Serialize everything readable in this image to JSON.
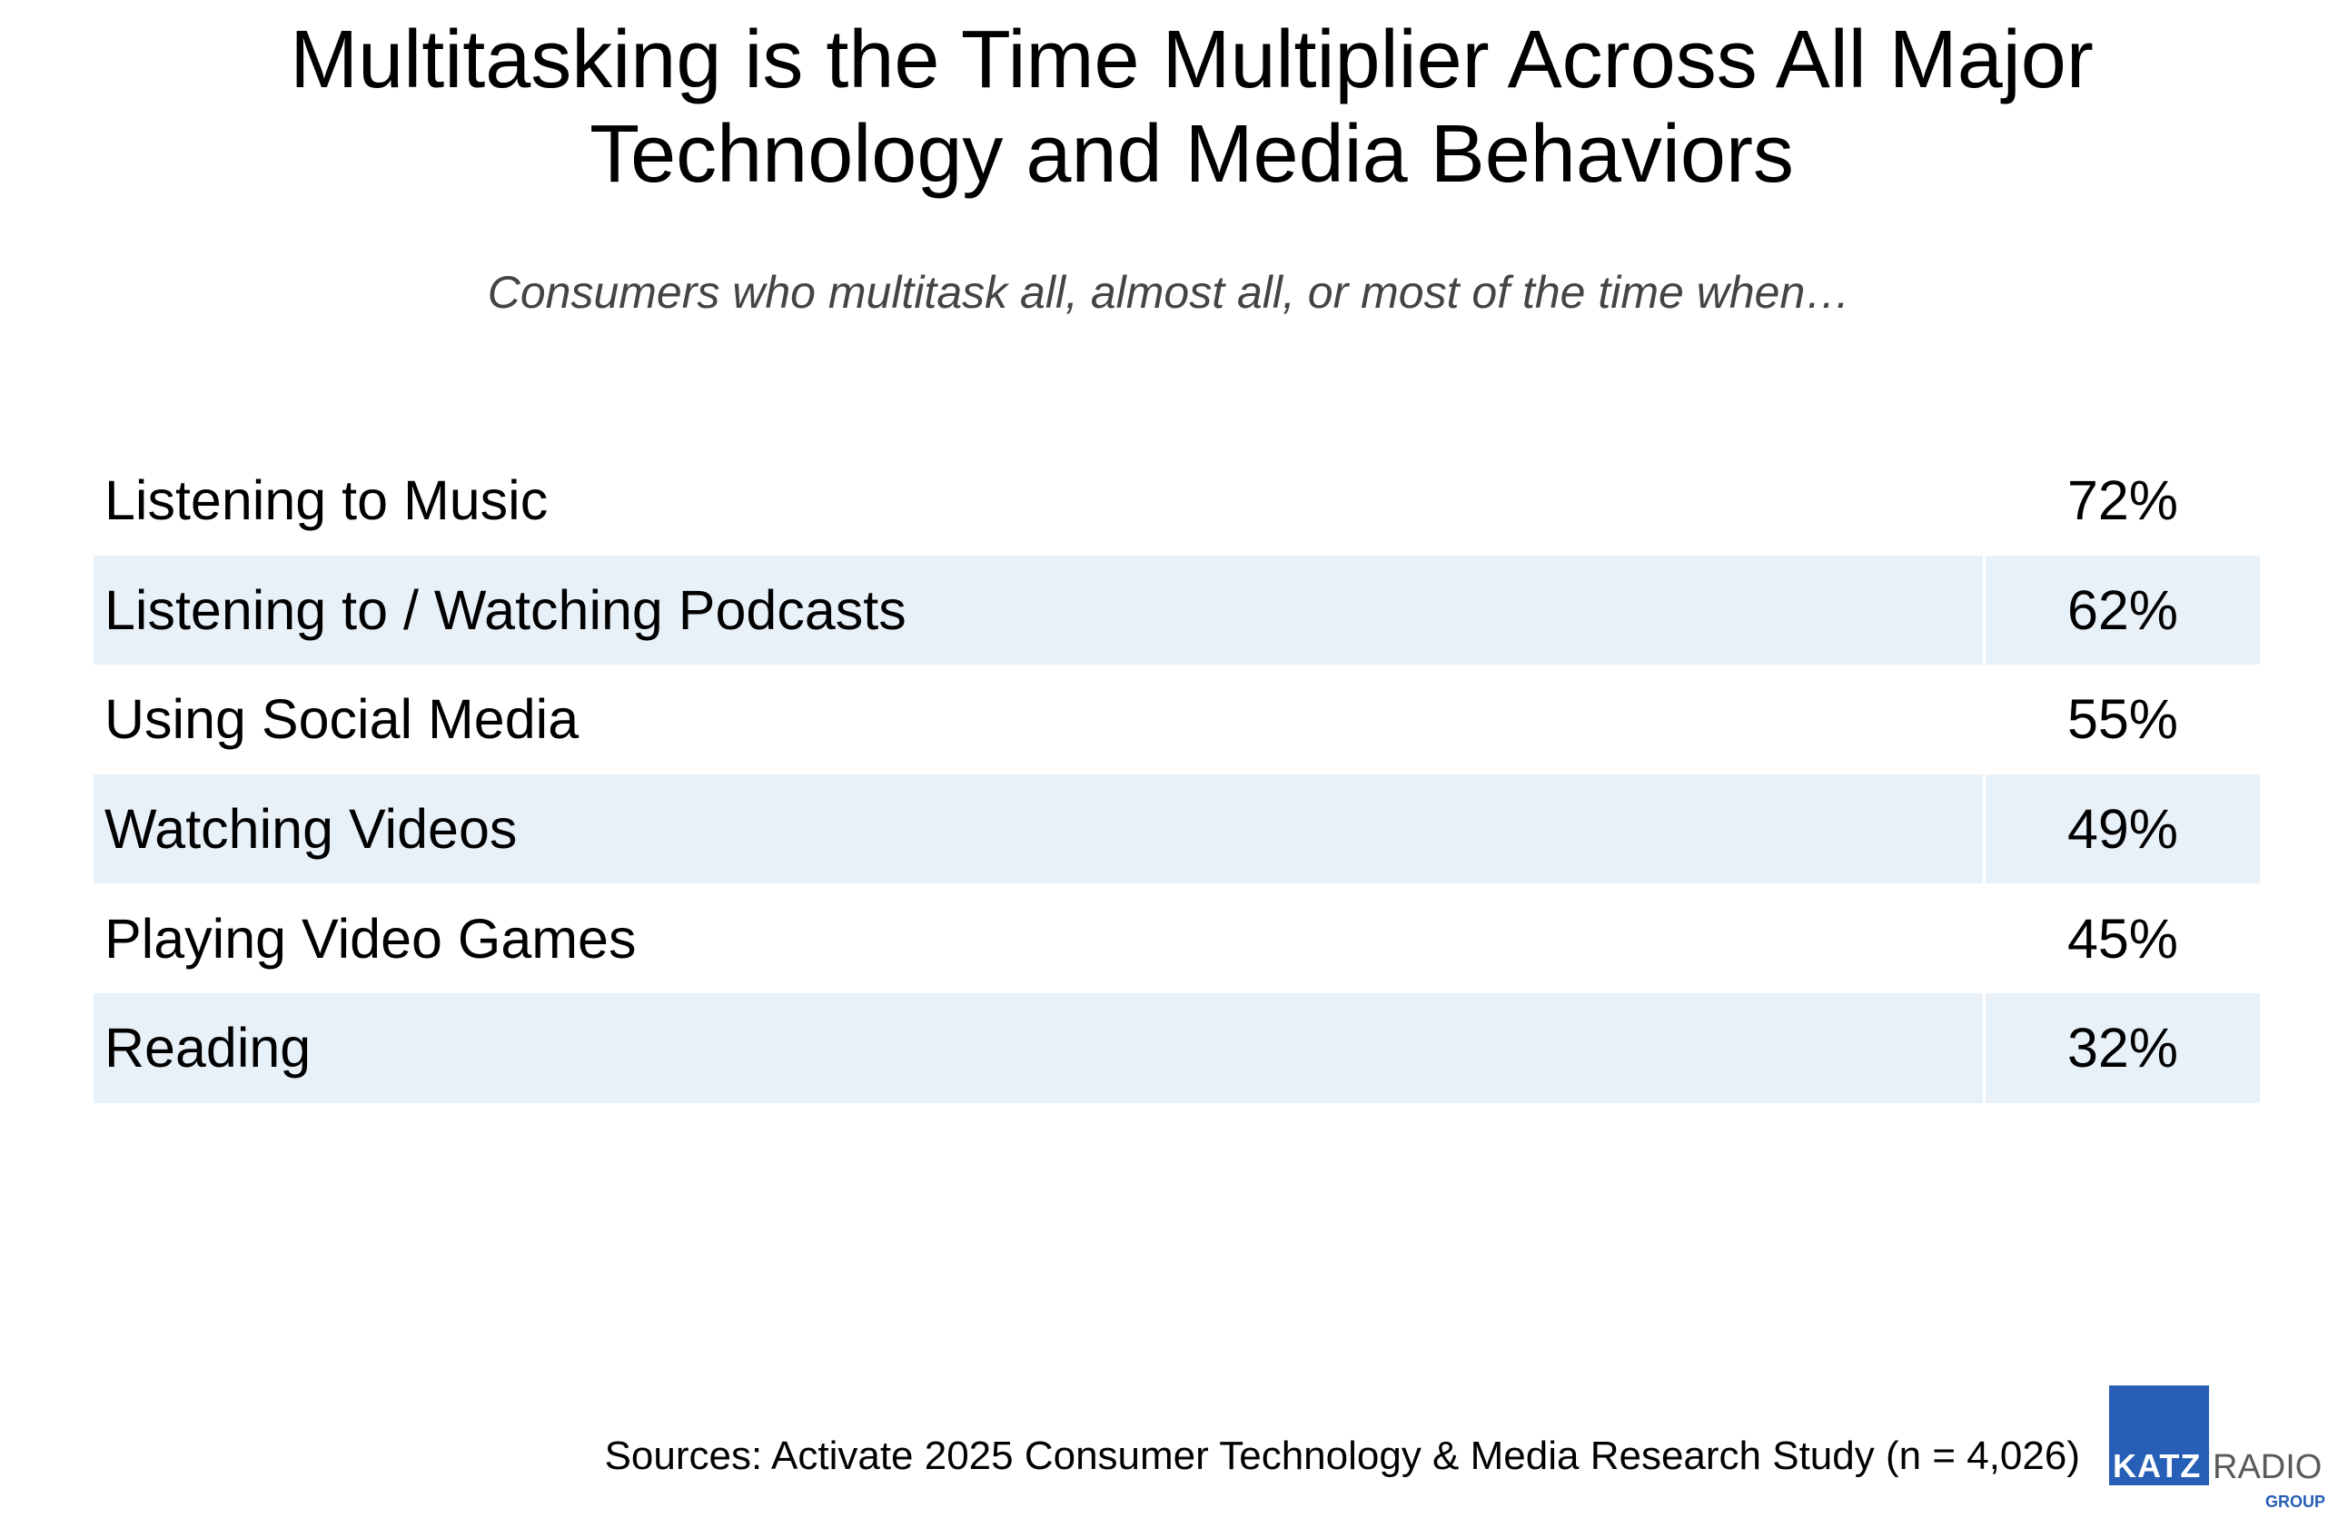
{
  "chart_data": {
    "type": "table",
    "title": [
      "Multitasking is the Time Multiplier Across All Major",
      "Technology and Media Behaviors"
    ],
    "subtitle": "Consumers who multitask all, almost all, or most of the time when…",
    "rows": [
      {
        "label": "Listening to Music",
        "value": "72%"
      },
      {
        "label": "Listening to / Watching Podcasts",
        "value": "62%"
      },
      {
        "label": "Using Social Media",
        "value": "55%"
      },
      {
        "label": "Watching Videos",
        "value": "49%"
      },
      {
        "label": "Playing Video Games",
        "value": "45%"
      },
      {
        "label": "Reading",
        "value": "32%"
      }
    ],
    "values": [
      72,
      62,
      55,
      49,
      45,
      32
    ],
    "band_color": "#e8f0f8"
  },
  "footer": {
    "sources": "Sources: Activate 2025 Consumer Technology & Media Research Study (n = 4,026)"
  },
  "logo": {
    "katz": "KATZ",
    "radio": "RADIO",
    "group": "GROUP",
    "brand_color": "#265fb5"
  }
}
